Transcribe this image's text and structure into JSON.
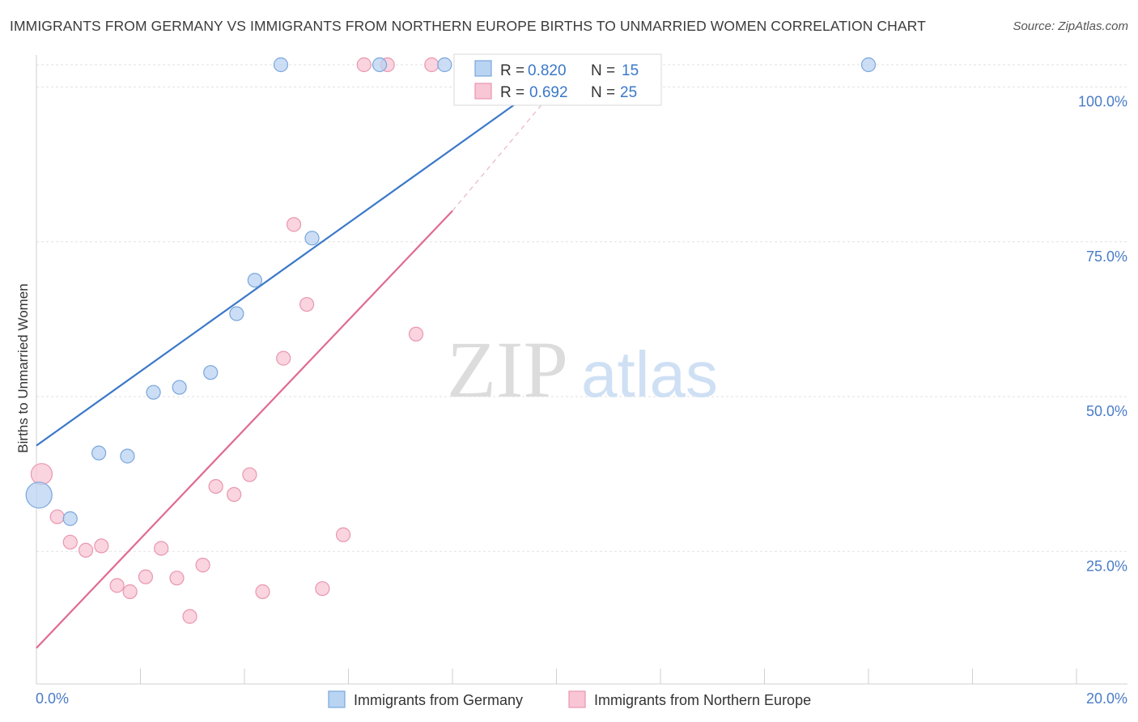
{
  "title": "IMMIGRANTS FROM GERMANY VS IMMIGRANTS FROM NORTHERN EUROPE BIRTHS TO UNMARRIED WOMEN CORRELATION CHART",
  "source": "Source: ZipAtlas.com",
  "watermark": {
    "zip": "ZIP",
    "atlas": "atlas"
  },
  "colors": {
    "blue_fill": "#b9d3f2",
    "blue_stroke": "#7aa6dc",
    "blue_line": "#3a78c9",
    "pink_fill": "#f8c6d4",
    "pink_stroke": "#e996b0",
    "pink_line": "#e06a92",
    "grid": "#e2e2e2",
    "axis_tick": "#4a7cc7"
  },
  "legend": {
    "r_label": "R =",
    "n_label": "N =",
    "germany": {
      "r": "0.820",
      "n": "15"
    },
    "northern": {
      "r": "0.692",
      "n": "25"
    }
  },
  "chart_data": {
    "type": "scatter",
    "xlabel": "",
    "ylabel": "Births to Unmarried Women",
    "xlim": [
      0,
      20
    ],
    "ylim": [
      0,
      100
    ],
    "x_tick_labels": [
      "0.0%",
      "20.0%"
    ],
    "y_ticks": [
      25,
      50,
      75,
      100
    ],
    "y_tick_labels": [
      "25.0%",
      "50.0%",
      "75.0%",
      "100.0%"
    ],
    "grid": true,
    "legend_position": "top-center",
    "series": [
      {
        "name": "Immigrants from Germany",
        "color": "#b9d3f2",
        "points": [
          {
            "x": 0.05,
            "y": 34.1,
            "size": 3
          },
          {
            "x": 0.65,
            "y": 30.3,
            "size": 1
          },
          {
            "x": 1.2,
            "y": 40.9,
            "size": 1
          },
          {
            "x": 1.75,
            "y": 40.4,
            "size": 1
          },
          {
            "x": 2.25,
            "y": 50.7,
            "size": 1
          },
          {
            "x": 2.75,
            "y": 51.5,
            "size": 1
          },
          {
            "x": 3.35,
            "y": 53.9,
            "size": 1
          },
          {
            "x": 3.85,
            "y": 63.4,
            "size": 1
          },
          {
            "x": 4.2,
            "y": 68.8,
            "size": 1
          },
          {
            "x": 5.3,
            "y": 75.6,
            "size": 1
          },
          {
            "x": 4.7,
            "y": 103.6,
            "size": 1
          },
          {
            "x": 6.6,
            "y": 103.6,
            "size": 1
          },
          {
            "x": 7.85,
            "y": 103.6,
            "size": 1
          },
          {
            "x": 8.75,
            "y": 103.6,
            "size": 1
          },
          {
            "x": 16.0,
            "y": 103.6,
            "size": 1
          }
        ],
        "trend": {
          "x": [
            0,
            10.5
          ],
          "y": [
            42.1,
            105.0
          ]
        }
      },
      {
        "name": "Immigrants from Northern Europe",
        "color": "#f8c6d4",
        "points": [
          {
            "x": 0.1,
            "y": 37.5,
            "size": 2
          },
          {
            "x": 0.4,
            "y": 30.6,
            "size": 1
          },
          {
            "x": 0.65,
            "y": 26.5,
            "size": 1
          },
          {
            "x": 0.95,
            "y": 25.2,
            "size": 1
          },
          {
            "x": 1.25,
            "y": 25.9,
            "size": 1
          },
          {
            "x": 1.55,
            "y": 19.5,
            "size": 1
          },
          {
            "x": 1.8,
            "y": 18.5,
            "size": 1
          },
          {
            "x": 2.1,
            "y": 20.9,
            "size": 1
          },
          {
            "x": 2.4,
            "y": 25.5,
            "size": 1
          },
          {
            "x": 2.7,
            "y": 20.7,
            "size": 1
          },
          {
            "x": 2.95,
            "y": 14.5,
            "size": 1
          },
          {
            "x": 3.2,
            "y": 22.8,
            "size": 1
          },
          {
            "x": 3.45,
            "y": 35.5,
            "size": 1
          },
          {
            "x": 3.8,
            "y": 34.2,
            "size": 1
          },
          {
            "x": 4.1,
            "y": 37.4,
            "size": 1
          },
          {
            "x": 4.35,
            "y": 18.5,
            "size": 1
          },
          {
            "x": 4.75,
            "y": 56.2,
            "size": 1
          },
          {
            "x": 4.95,
            "y": 77.8,
            "size": 1
          },
          {
            "x": 5.2,
            "y": 64.9,
            "size": 1
          },
          {
            "x": 5.5,
            "y": 19.0,
            "size": 1
          },
          {
            "x": 5.9,
            "y": 27.7,
            "size": 1
          },
          {
            "x": 6.3,
            "y": 103.6,
            "size": 1
          },
          {
            "x": 6.75,
            "y": 103.6,
            "size": 1
          },
          {
            "x": 7.6,
            "y": 103.6,
            "size": 1
          },
          {
            "x": 7.3,
            "y": 60.1,
            "size": 1
          }
        ],
        "trend": {
          "x": [
            0,
            8.0
          ],
          "y": [
            9.4,
            80.0
          ]
        },
        "trend_dashed_extension": {
          "x": [
            8.0,
            10.5
          ],
          "y": [
            80.0,
            105.0
          ]
        }
      }
    ]
  }
}
